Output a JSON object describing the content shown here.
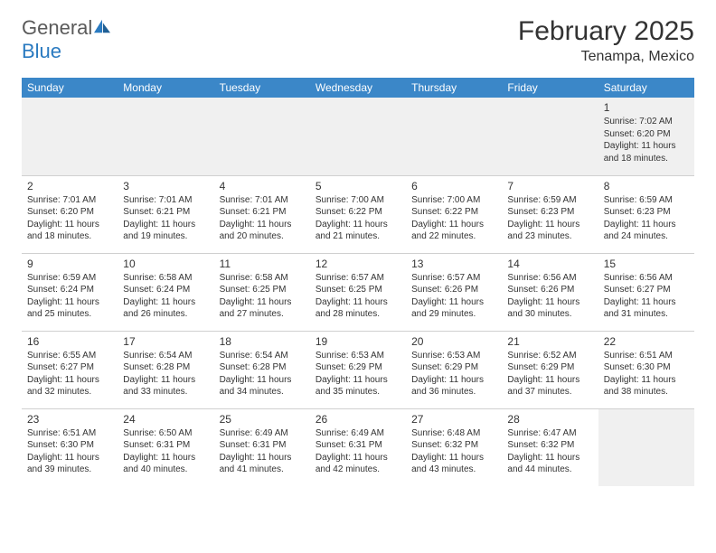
{
  "brand": {
    "general": "General",
    "blue": "Blue"
  },
  "title": {
    "month": "February 2025",
    "location": "Tenampa, Mexico"
  },
  "colors": {
    "header_bg": "#3b87c8",
    "header_fg": "#ffffff",
    "brand_gray": "#5a5a5a",
    "brand_blue": "#2a7ac0",
    "row_alt": "#f0f0f0",
    "border": "#d0d0d0",
    "text": "#333333"
  },
  "days": [
    "Sunday",
    "Monday",
    "Tuesday",
    "Wednesday",
    "Thursday",
    "Friday",
    "Saturday"
  ],
  "weeks": [
    [
      null,
      null,
      null,
      null,
      null,
      null,
      {
        "n": "1",
        "sr": "Sunrise: 7:02 AM",
        "ss": "Sunset: 6:20 PM",
        "dl": "Daylight: 11 hours and 18 minutes."
      }
    ],
    [
      {
        "n": "2",
        "sr": "Sunrise: 7:01 AM",
        "ss": "Sunset: 6:20 PM",
        "dl": "Daylight: 11 hours and 18 minutes."
      },
      {
        "n": "3",
        "sr": "Sunrise: 7:01 AM",
        "ss": "Sunset: 6:21 PM",
        "dl": "Daylight: 11 hours and 19 minutes."
      },
      {
        "n": "4",
        "sr": "Sunrise: 7:01 AM",
        "ss": "Sunset: 6:21 PM",
        "dl": "Daylight: 11 hours and 20 minutes."
      },
      {
        "n": "5",
        "sr": "Sunrise: 7:00 AM",
        "ss": "Sunset: 6:22 PM",
        "dl": "Daylight: 11 hours and 21 minutes."
      },
      {
        "n": "6",
        "sr": "Sunrise: 7:00 AM",
        "ss": "Sunset: 6:22 PM",
        "dl": "Daylight: 11 hours and 22 minutes."
      },
      {
        "n": "7",
        "sr": "Sunrise: 6:59 AM",
        "ss": "Sunset: 6:23 PM",
        "dl": "Daylight: 11 hours and 23 minutes."
      },
      {
        "n": "8",
        "sr": "Sunrise: 6:59 AM",
        "ss": "Sunset: 6:23 PM",
        "dl": "Daylight: 11 hours and 24 minutes."
      }
    ],
    [
      {
        "n": "9",
        "sr": "Sunrise: 6:59 AM",
        "ss": "Sunset: 6:24 PM",
        "dl": "Daylight: 11 hours and 25 minutes."
      },
      {
        "n": "10",
        "sr": "Sunrise: 6:58 AM",
        "ss": "Sunset: 6:24 PM",
        "dl": "Daylight: 11 hours and 26 minutes."
      },
      {
        "n": "11",
        "sr": "Sunrise: 6:58 AM",
        "ss": "Sunset: 6:25 PM",
        "dl": "Daylight: 11 hours and 27 minutes."
      },
      {
        "n": "12",
        "sr": "Sunrise: 6:57 AM",
        "ss": "Sunset: 6:25 PM",
        "dl": "Daylight: 11 hours and 28 minutes."
      },
      {
        "n": "13",
        "sr": "Sunrise: 6:57 AM",
        "ss": "Sunset: 6:26 PM",
        "dl": "Daylight: 11 hours and 29 minutes."
      },
      {
        "n": "14",
        "sr": "Sunrise: 6:56 AM",
        "ss": "Sunset: 6:26 PM",
        "dl": "Daylight: 11 hours and 30 minutes."
      },
      {
        "n": "15",
        "sr": "Sunrise: 6:56 AM",
        "ss": "Sunset: 6:27 PM",
        "dl": "Daylight: 11 hours and 31 minutes."
      }
    ],
    [
      {
        "n": "16",
        "sr": "Sunrise: 6:55 AM",
        "ss": "Sunset: 6:27 PM",
        "dl": "Daylight: 11 hours and 32 minutes."
      },
      {
        "n": "17",
        "sr": "Sunrise: 6:54 AM",
        "ss": "Sunset: 6:28 PM",
        "dl": "Daylight: 11 hours and 33 minutes."
      },
      {
        "n": "18",
        "sr": "Sunrise: 6:54 AM",
        "ss": "Sunset: 6:28 PM",
        "dl": "Daylight: 11 hours and 34 minutes."
      },
      {
        "n": "19",
        "sr": "Sunrise: 6:53 AM",
        "ss": "Sunset: 6:29 PM",
        "dl": "Daylight: 11 hours and 35 minutes."
      },
      {
        "n": "20",
        "sr": "Sunrise: 6:53 AM",
        "ss": "Sunset: 6:29 PM",
        "dl": "Daylight: 11 hours and 36 minutes."
      },
      {
        "n": "21",
        "sr": "Sunrise: 6:52 AM",
        "ss": "Sunset: 6:29 PM",
        "dl": "Daylight: 11 hours and 37 minutes."
      },
      {
        "n": "22",
        "sr": "Sunrise: 6:51 AM",
        "ss": "Sunset: 6:30 PM",
        "dl": "Daylight: 11 hours and 38 minutes."
      }
    ],
    [
      {
        "n": "23",
        "sr": "Sunrise: 6:51 AM",
        "ss": "Sunset: 6:30 PM",
        "dl": "Daylight: 11 hours and 39 minutes."
      },
      {
        "n": "24",
        "sr": "Sunrise: 6:50 AM",
        "ss": "Sunset: 6:31 PM",
        "dl": "Daylight: 11 hours and 40 minutes."
      },
      {
        "n": "25",
        "sr": "Sunrise: 6:49 AM",
        "ss": "Sunset: 6:31 PM",
        "dl": "Daylight: 11 hours and 41 minutes."
      },
      {
        "n": "26",
        "sr": "Sunrise: 6:49 AM",
        "ss": "Sunset: 6:31 PM",
        "dl": "Daylight: 11 hours and 42 minutes."
      },
      {
        "n": "27",
        "sr": "Sunrise: 6:48 AM",
        "ss": "Sunset: 6:32 PM",
        "dl": "Daylight: 11 hours and 43 minutes."
      },
      {
        "n": "28",
        "sr": "Sunrise: 6:47 AM",
        "ss": "Sunset: 6:32 PM",
        "dl": "Daylight: 11 hours and 44 minutes."
      },
      null
    ]
  ]
}
